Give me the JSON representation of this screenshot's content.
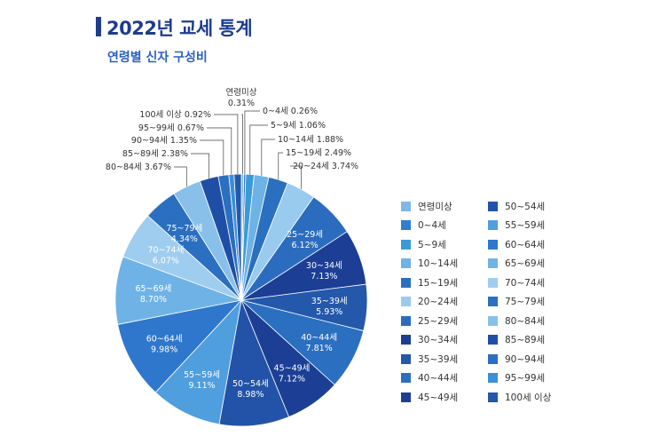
{
  "header": {
    "title": "2022년 교세 통계",
    "subtitle": "연령별 신자 구성비"
  },
  "chart_data": {
    "type": "pie",
    "title": "연령별 신자 구성비",
    "unit": "%",
    "categories": [
      "연령미상",
      "0~4세",
      "5~9세",
      "10~14세",
      "15~19세",
      "20~24세",
      "25~29세",
      "30~34세",
      "35~39세",
      "40~44세",
      "45~49세",
      "50~54세",
      "55~59세",
      "60~64세",
      "65~69세",
      "70~74세",
      "75~79세",
      "80~84세",
      "85~89세",
      "90~94세",
      "95~99세",
      "100세 이상"
    ],
    "values": [
      0.31,
      0.26,
      1.06,
      1.88,
      2.49,
      3.74,
      6.12,
      7.13,
      5.93,
      7.81,
      7.12,
      8.98,
      9.11,
      9.98,
      8.7,
      6.07,
      4.34,
      3.67,
      2.38,
      1.35,
      0.67,
      0.92
    ],
    "value_labels": [
      "0.31%",
      "0.26%",
      "1.06%",
      "1.88%",
      "2.49%",
      "3.74%",
      "6.12%",
      "7.13%",
      "5.93%",
      "7.81%",
      "7.12%",
      "8.98%",
      "9.11%",
      "9.98%",
      "8.70%",
      "6.07%",
      "4.34%",
      "3.67%",
      "2.38%",
      "1.35%",
      "0.67%",
      "0.92%"
    ],
    "colors": [
      "#7fb8e6",
      "#2f7fd0",
      "#3a9ad8",
      "#6fb3e6",
      "#2a6fc0",
      "#98cbee",
      "#2b6cbf",
      "#1c3f95",
      "#2358aa",
      "#2a6fc0",
      "#1c3f95",
      "#2353a8",
      "#4f9ede",
      "#2f77cc",
      "#6fb3e6",
      "#9fcdf0",
      "#2a6fc0",
      "#88c0ea",
      "#1f4ea6",
      "#2a6fc0",
      "#3a8fd8",
      "#2358aa"
    ],
    "legend": {
      "position": "right",
      "columns": 2
    }
  }
}
